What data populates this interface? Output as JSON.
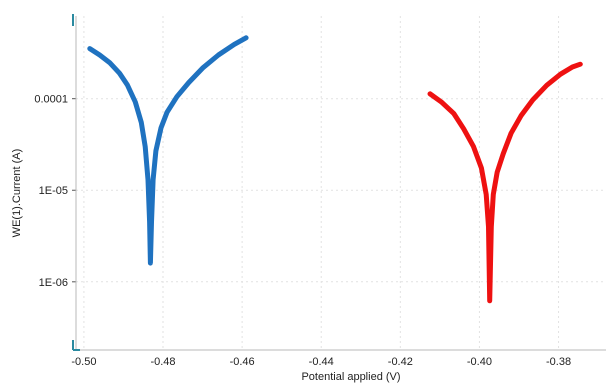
{
  "chart_data": {
    "type": "line",
    "xlabel": "Potential applied (V)",
    "ylabel": "WE(1).Current (A)",
    "x_scale": "linear",
    "y_scale": "log",
    "xlim": [
      -0.502,
      -0.368
    ],
    "ylim": [
      1.8e-07,
      0.0008
    ],
    "x_ticks": [
      -0.5,
      -0.48,
      -0.46,
      -0.44,
      -0.42,
      -0.4,
      -0.38
    ],
    "x_tick_labels": [
      "-0.50",
      "-0.48",
      "-0.46",
      "-0.44",
      "-0.42",
      "-0.40",
      "-0.38"
    ],
    "y_ticks": [
      1e-06,
      1e-05,
      0.0001
    ],
    "y_tick_labels": [
      "1E-06",
      "1E-05",
      "0.0001"
    ],
    "grid": true,
    "legend": "none",
    "series": [
      {
        "color": "#1f72c0",
        "points": [
          [
            -0.4985,
            0.000352
          ],
          [
            -0.496,
            0.0003
          ],
          [
            -0.4935,
            0.000248
          ],
          [
            -0.491,
            0.00019
          ],
          [
            -0.489,
            0.000141
          ],
          [
            -0.487,
            9.2e-05
          ],
          [
            -0.4855,
            5.5e-05
          ],
          [
            -0.4845,
            3e-05
          ],
          [
            -0.4838,
            1.3e-05
          ],
          [
            -0.4834,
            4.5e-06
          ],
          [
            -0.4832,
            1.6e-06
          ],
          [
            -0.4829,
            4.5e-06
          ],
          [
            -0.4825,
            1.3e-05
          ],
          [
            -0.4818,
            2.7e-05
          ],
          [
            -0.4805,
            4.8e-05
          ],
          [
            -0.479,
            7.1e-05
          ],
          [
            -0.4765,
            0.000105
          ],
          [
            -0.4735,
            0.00015
          ],
          [
            -0.47,
            0.000216
          ],
          [
            -0.466,
            0.0003
          ],
          [
            -0.462,
            0.000392
          ],
          [
            -0.459,
            0.000462
          ]
        ]
      },
      {
        "color": "#ee1111",
        "points": [
          [
            -0.4125,
            0.000113
          ],
          [
            -0.4095,
            9.1e-05
          ],
          [
            -0.4065,
            6.9e-05
          ],
          [
            -0.404,
            4.7e-05
          ],
          [
            -0.4015,
            3e-05
          ],
          [
            -0.3995,
            1.75e-05
          ],
          [
            -0.3983,
            9e-06
          ],
          [
            -0.3977,
            4e-06
          ],
          [
            -0.3974,
            6.2e-07
          ],
          [
            -0.397,
            4e-06
          ],
          [
            -0.3965,
            9e-06
          ],
          [
            -0.3955,
            1.58e-05
          ],
          [
            -0.394,
            2.5e-05
          ],
          [
            -0.392,
            4.2e-05
          ],
          [
            -0.3895,
            6.5e-05
          ],
          [
            -0.3865,
            9.7e-05
          ],
          [
            -0.383,
            0.00014
          ],
          [
            -0.3795,
            0.000185
          ],
          [
            -0.3765,
            0.000222
          ],
          [
            -0.3745,
            0.000238
          ]
        ]
      }
    ]
  }
}
